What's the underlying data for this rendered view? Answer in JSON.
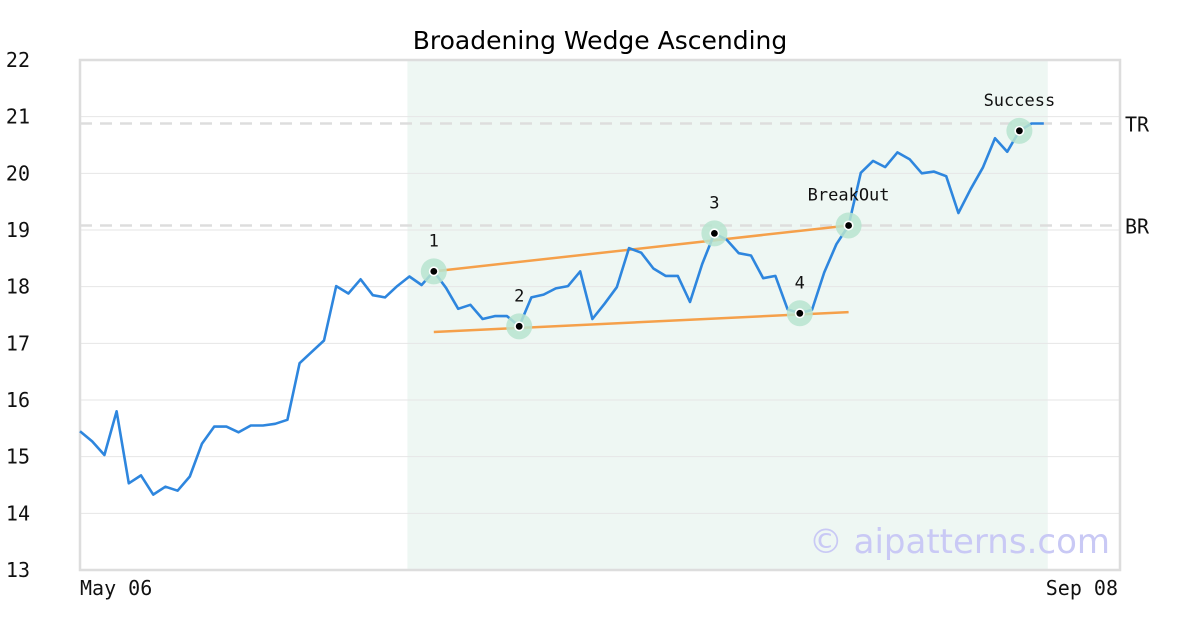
{
  "chart_data": {
    "type": "line",
    "title": "Broadening Wedge Ascending",
    "xlabel": "",
    "ylabel": "",
    "ylim": [
      13,
      22
    ],
    "yticks": [
      13,
      14,
      15,
      16,
      17,
      18,
      19,
      20,
      21,
      22
    ],
    "xtick_labels": [
      "May 06",
      "Sep 08"
    ],
    "grid": true,
    "colors": {
      "line": "#2e86de",
      "wedge": "#f5a04a",
      "highlight_band": "#eef7f3",
      "marker_halo": "#b7e4cf",
      "reference_line": "#dddddd",
      "watermark": "#c9c9f5"
    },
    "series": [
      {
        "values": [
          15.45,
          15.27,
          15.03,
          15.8,
          14.53,
          14.67,
          14.33,
          14.47,
          14.4,
          14.65,
          15.23,
          15.53,
          15.53,
          15.43,
          15.55,
          15.55,
          15.58,
          15.65,
          16.65,
          16.85,
          17.05,
          18.01,
          17.88,
          18.13,
          17.85,
          17.81,
          18.01,
          18.18,
          18.03,
          18.27,
          17.98,
          17.61,
          17.68,
          17.43,
          17.48,
          17.48,
          17.3,
          17.81,
          17.86,
          17.97,
          18.01,
          18.27,
          17.43,
          17.7,
          17.99,
          18.68,
          18.6,
          18.32,
          18.19,
          18.19,
          17.73,
          18.4,
          18.94,
          18.83,
          18.59,
          18.55,
          18.15,
          18.19,
          17.6,
          17.53,
          17.59,
          18.25,
          18.75,
          19.08,
          20.01,
          20.22,
          20.11,
          20.37,
          20.25,
          20.0,
          20.03,
          19.95,
          19.3,
          19.72,
          20.1,
          20.62,
          20.38,
          20.75,
          20.88,
          20.88
        ]
      }
    ],
    "highlight_region": {
      "start_index": 27,
      "end_index": 79
    },
    "pivots": [
      {
        "label": "1",
        "index": 29,
        "value": 18.27
      },
      {
        "label": "2",
        "index": 36,
        "value": 17.3
      },
      {
        "label": "3",
        "index": 52,
        "value": 18.94
      },
      {
        "label": "4",
        "index": 59,
        "value": 17.53
      },
      {
        "label": "BreakOut",
        "index": 63,
        "value": 19.08
      },
      {
        "label": "Success",
        "index": 77,
        "value": 20.75
      }
    ],
    "wedge_lines": [
      {
        "from": [
          29,
          18.27
        ],
        "to": [
          63,
          19.08
        ]
      },
      {
        "from": [
          29,
          17.2
        ],
        "to": [
          63,
          17.55
        ]
      }
    ],
    "reference_lines": [
      {
        "label": "TR",
        "value": 20.88
      },
      {
        "label": "BR",
        "value": 19.08
      }
    ],
    "watermark": "© aipatterns.com"
  }
}
